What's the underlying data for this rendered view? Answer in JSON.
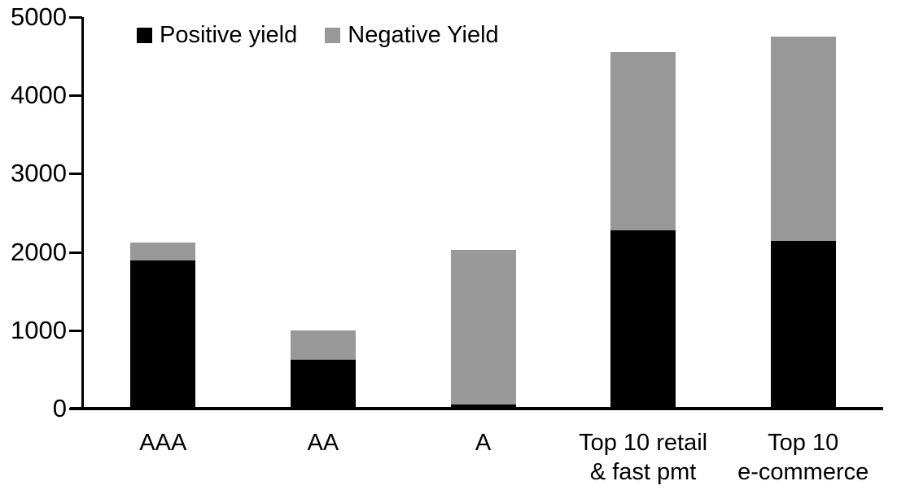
{
  "chart_data": {
    "type": "bar",
    "stacked": true,
    "title": "",
    "xlabel": "",
    "ylabel": "",
    "categories": [
      "AAA",
      "AA",
      "A",
      "Top 10 retail\n& fast pmt",
      "Top 10\ne-commerce"
    ],
    "series": [
      {
        "name": "Positive yield",
        "color": "#000000",
        "values": [
          1890,
          620,
          50,
          2280,
          2140
        ]
      },
      {
        "name": "Negative Yield",
        "color": "#989898",
        "values": [
          230,
          380,
          1980,
          2270,
          2610
        ]
      }
    ],
    "stack_totals": [
      2120,
      1000,
      2030,
      4550,
      4750
    ],
    "ylim": [
      0,
      5000
    ],
    "ytick_step": 1000,
    "ytick_labels": [
      "0",
      "1000",
      "2000",
      "3000",
      "4000",
      "5000"
    ],
    "grid": false,
    "legend_position": "top-left",
    "colors": {
      "axis": "#000000",
      "text": "#000000",
      "background": "#ffffff"
    }
  }
}
